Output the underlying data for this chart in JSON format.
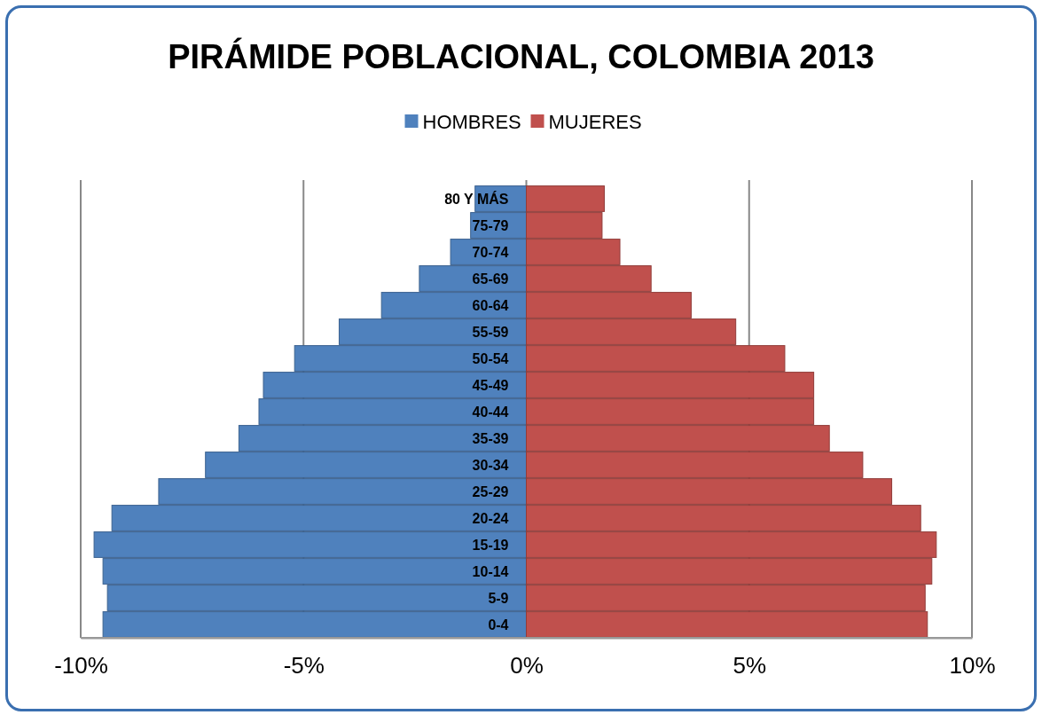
{
  "chart_data": {
    "type": "bar",
    "orientation": "horizontal",
    "title": "PIRÁMIDE POBLACIONAL, COLOMBIA 2013",
    "categories": [
      "80 Y MÁS",
      "75-79",
      "70-74",
      "65-69",
      "60-64",
      "55-59",
      "50-54",
      "45-49",
      "40-44",
      "35-39",
      "30-34",
      "25-29",
      "20-24",
      "15-19",
      "10-14",
      "5-9",
      "0-4"
    ],
    "series": [
      {
        "name": "HOMBRES",
        "color": "#4f81bd",
        "values": [
          -1.15,
          -1.25,
          -1.7,
          -2.4,
          -3.25,
          -4.2,
          -5.2,
          -5.9,
          -6.0,
          -6.45,
          -7.2,
          -8.25,
          -9.3,
          -9.7,
          -9.5,
          -9.4,
          -9.5
        ]
      },
      {
        "name": "MUJERES",
        "color": "#c0504d",
        "values": [
          1.75,
          1.7,
          2.1,
          2.8,
          3.7,
          4.7,
          5.8,
          6.45,
          6.45,
          6.8,
          7.55,
          8.2,
          8.85,
          9.2,
          9.1,
          8.95,
          9.0
        ]
      }
    ],
    "xlim": [
      -10,
      10
    ],
    "xticks": [
      {
        "value": -10,
        "label": "-10%"
      },
      {
        "value": -5,
        "label": "-5%"
      },
      {
        "value": 0,
        "label": "0%"
      },
      {
        "value": 5,
        "label": "5%"
      },
      {
        "value": 10,
        "label": "10%"
      }
    ],
    "stacked": true,
    "grid": "x",
    "legend": "top"
  }
}
